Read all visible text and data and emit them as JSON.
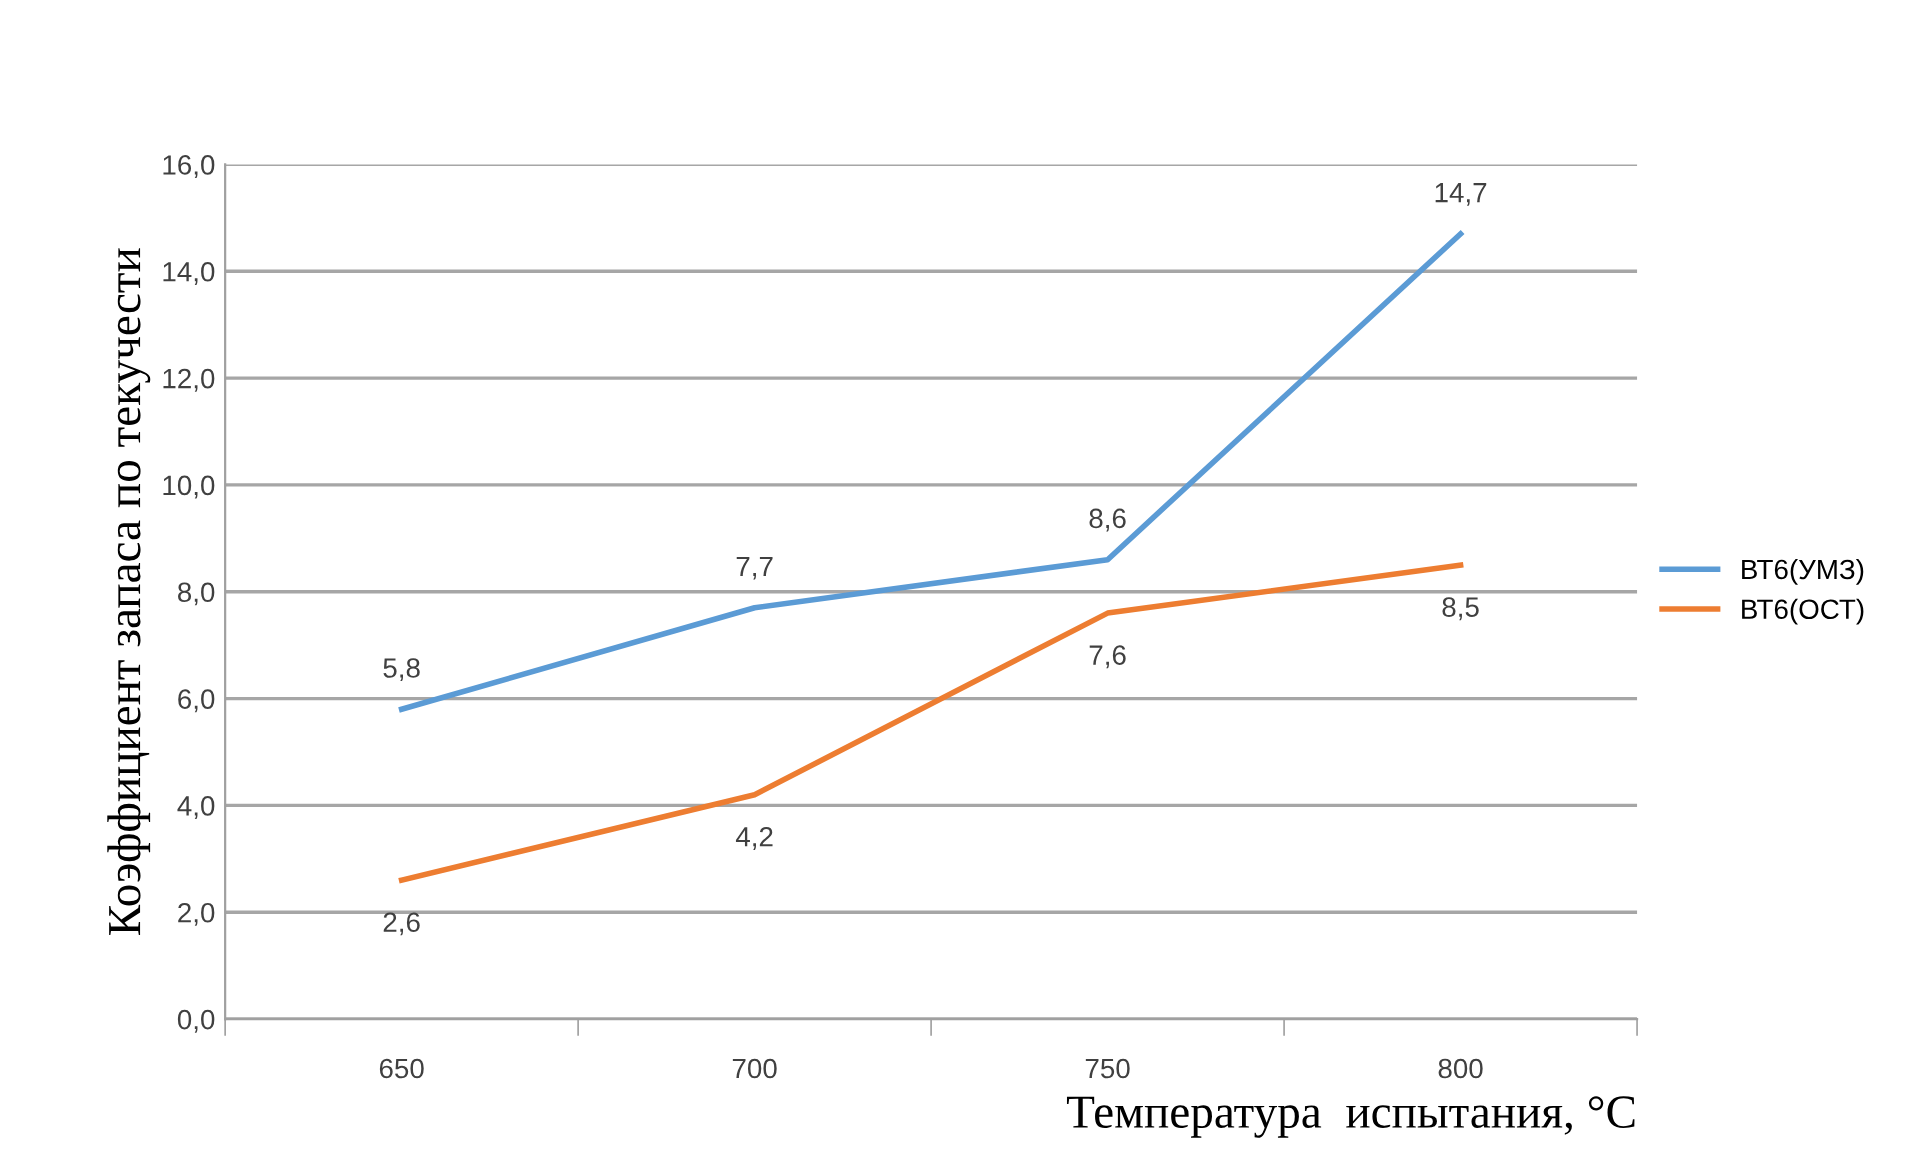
{
  "chart_data": {
    "type": "line",
    "xlabel": "Температура  испытания, °C",
    "ylabel": "Коэффициент запаса по текучести",
    "categories": [
      "650",
      "700",
      "750",
      "800"
    ],
    "series": [
      {
        "name": "ВТ6(УМЗ)",
        "color": "#5b9bd5",
        "values": [
          5.8,
          7.7,
          8.6,
          14.7
        ],
        "value_labels": [
          "5,8",
          "7,7",
          "8,6",
          "14,7"
        ]
      },
      {
        "name": "ВТ6(ОСТ)",
        "color": "#ed7d31",
        "values": [
          2.6,
          4.2,
          7.6,
          8.5
        ],
        "value_labels": [
          "2,6",
          "4,2",
          "7,6",
          "8,5"
        ]
      }
    ],
    "ylim": [
      0,
      16
    ],
    "yticks": [
      {
        "value": 0,
        "label": "0,0"
      },
      {
        "value": 2,
        "label": "2,0"
      },
      {
        "value": 4,
        "label": "4,0"
      },
      {
        "value": 6,
        "label": "6,0"
      },
      {
        "value": 8,
        "label": "8,0"
      },
      {
        "value": 10,
        "label": "10,0"
      },
      {
        "value": 12,
        "label": "12,0"
      },
      {
        "value": 14,
        "label": "14,0"
      },
      {
        "value": 16,
        "label": "16,0"
      }
    ],
    "grid": "y",
    "legend": "right",
    "marker": "none",
    "line_style": "solid"
  }
}
